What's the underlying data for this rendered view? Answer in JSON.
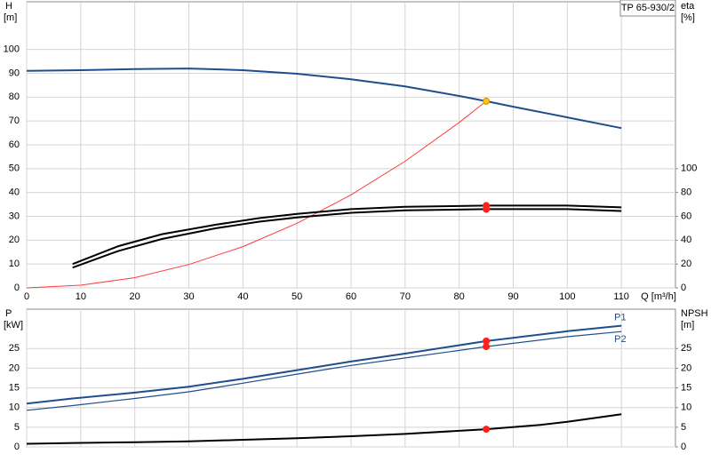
{
  "chart_data": [
    {
      "type": "line",
      "title": "TP 65-930/2",
      "ylabel": "H",
      "yunit": "[m]",
      "y2label": "eta",
      "y2unit": "[%]",
      "xlabel": "Q [m³/h]",
      "xlim": [
        0,
        120
      ],
      "xticks": [
        0,
        10,
        20,
        30,
        40,
        50,
        60,
        70,
        80,
        90,
        100,
        110
      ],
      "xtick_labels": true,
      "ylim": [
        0,
        120
      ],
      "yticks": [
        0,
        10,
        20,
        30,
        40,
        50,
        60,
        70,
        80,
        90,
        100
      ],
      "y2lim": [
        0,
        240
      ],
      "y2ticks": [
        0,
        20,
        40,
        60,
        80,
        100
      ],
      "grid": true,
      "series": [
        {
          "color": "#1f4e8c",
          "width": 2,
          "x": [
            0,
            10,
            20,
            30,
            40,
            50,
            60,
            70,
            80,
            85,
            90,
            100,
            110
          ],
          "values": [
            91,
            91.3,
            91.8,
            92,
            91.3,
            89.8,
            87.5,
            84.5,
            80.5,
            78.3,
            76,
            71.5,
            67
          ]
        },
        {
          "color": "#ff3b3b",
          "width": 1,
          "x": [
            0,
            10,
            20,
            30,
            40,
            50,
            60,
            70,
            80,
            85
          ],
          "values": [
            0,
            1.1,
            4.3,
            9.8,
            17.3,
            27.1,
            39,
            53.1,
            69.4,
            78.3
          ]
        },
        {
          "color": "#000000",
          "width": 2,
          "axis": "y2",
          "x": [
            8.5,
            17,
            25,
            35,
            43,
            50,
            60,
            70,
            85,
            100,
            110
          ],
          "values": [
            20,
            35,
            45,
            53,
            58.5,
            62,
            66,
            68,
            69,
            69,
            67.5
          ]
        },
        {
          "color": "#000000",
          "width": 2,
          "axis": "y2",
          "x": [
            8.5,
            17,
            25,
            35,
            43,
            50,
            60,
            70,
            85,
            100,
            110
          ],
          "values": [
            17,
            31,
            41,
            50,
            55.5,
            59,
            63,
            65,
            66,
            66,
            64.5
          ]
        }
      ],
      "points": [
        {
          "x": 85,
          "y": 78.3,
          "color": "#f5c518"
        },
        {
          "x": 85,
          "y": 69,
          "axis": "y2",
          "color": "#ff2020"
        },
        {
          "x": 85,
          "y": 66,
          "axis": "y2",
          "color": "#ff2020"
        }
      ]
    },
    {
      "type": "line",
      "ylabel": "P",
      "yunit": "[kW]",
      "y2label": "NPSH",
      "y2unit": "[m]",
      "xlim": [
        0,
        120
      ],
      "xticks": [
        0,
        10,
        20,
        30,
        40,
        50,
        60,
        70,
        80,
        90,
        100,
        110
      ],
      "xtick_labels": false,
      "ylim": [
        0,
        35
      ],
      "yticks": [
        0,
        5,
        10,
        15,
        20,
        25
      ],
      "y2lim": [
        0,
        35
      ],
      "y2ticks": [
        0,
        5,
        10,
        15,
        20,
        25
      ],
      "grid": true,
      "series": [
        {
          "name": "P1",
          "color": "#1f4e8c",
          "width": 2,
          "x": [
            0,
            8.5,
            20,
            30,
            40,
            50,
            60,
            70,
            85,
            100,
            110
          ],
          "values": [
            11,
            12.3,
            13.8,
            15.3,
            17.3,
            19.5,
            21.7,
            23.7,
            26.9,
            29.4,
            30.8
          ]
        },
        {
          "name": "P2",
          "color": "#1f4e8c",
          "width": 1.2,
          "x": [
            0,
            8.5,
            20,
            30,
            40,
            50,
            60,
            70,
            85,
            100,
            110
          ],
          "values": [
            9.3,
            10.5,
            12.3,
            14,
            16.2,
            18.5,
            20.7,
            22.6,
            25.5,
            28,
            29.3
          ]
        },
        {
          "color": "#000000",
          "width": 2,
          "axis": "y2",
          "x": [
            0,
            8.5,
            20,
            30,
            40,
            50,
            60,
            70,
            85,
            95,
            100,
            110
          ],
          "values": [
            0.8,
            1,
            1.2,
            1.4,
            1.8,
            2.2,
            2.7,
            3.3,
            4.5,
            5.6,
            6.4,
            8.3
          ]
        }
      ],
      "points": [
        {
          "x": 85,
          "y": 26.9,
          "color": "#ff2020"
        },
        {
          "x": 85,
          "y": 25.5,
          "color": "#ff2020"
        },
        {
          "x": 85,
          "y": 4.5,
          "axis": "y2",
          "color": "#ff2020"
        }
      ]
    }
  ]
}
